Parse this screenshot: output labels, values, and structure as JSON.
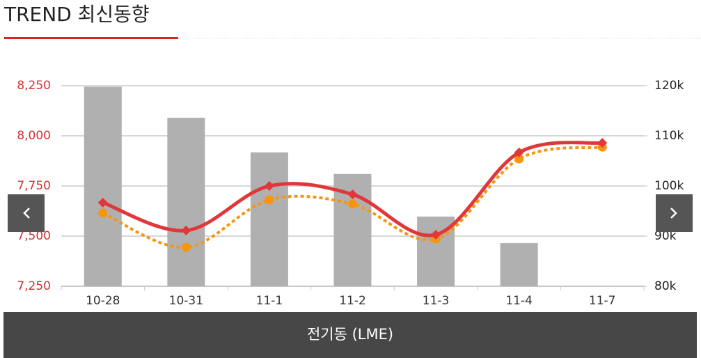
{
  "header": {
    "title": "TREND 최신동향"
  },
  "chart_data": {
    "type": "bar",
    "categories": [
      "10-28",
      "10-31",
      "11-1",
      "11-2",
      "11-3",
      "11-4",
      "11-7"
    ],
    "series": [
      {
        "type": "bar",
        "axis": "y2",
        "color": "#b0b0b0",
        "values": [
          119800,
          113600,
          106700,
          102400,
          93900,
          88600,
          null
        ]
      },
      {
        "type": "line",
        "color": "#e0383a",
        "marker": "diamond",
        "dashed": false,
        "values": [
          7667,
          7528,
          7750,
          7708,
          7507,
          7917,
          7965
        ]
      },
      {
        "type": "line",
        "color": "#f7950f",
        "marker": "circle",
        "dashed": true,
        "values": [
          7615,
          7444,
          7681,
          7660,
          7486,
          7885,
          7944
        ]
      }
    ],
    "ylim": [
      7250,
      8250
    ],
    "yticks": [
      {
        "value": 7250,
        "label": "7,250"
      },
      {
        "value": 7500,
        "label": "7,500"
      },
      {
        "value": 7750,
        "label": "7,750"
      },
      {
        "value": 8000,
        "label": "8,000"
      },
      {
        "value": 8250,
        "label": "8,250"
      }
    ],
    "y2lim": [
      80000,
      120000
    ],
    "y2ticks": [
      {
        "value": 80000,
        "label": "80k"
      },
      {
        "value": 90000,
        "label": "90k"
      },
      {
        "value": 100000,
        "label": "100k"
      },
      {
        "value": 110000,
        "label": "110k"
      },
      {
        "value": 120000,
        "label": "120k"
      }
    ],
    "grid": true,
    "xlabel": "전기동 (LME)"
  }
}
